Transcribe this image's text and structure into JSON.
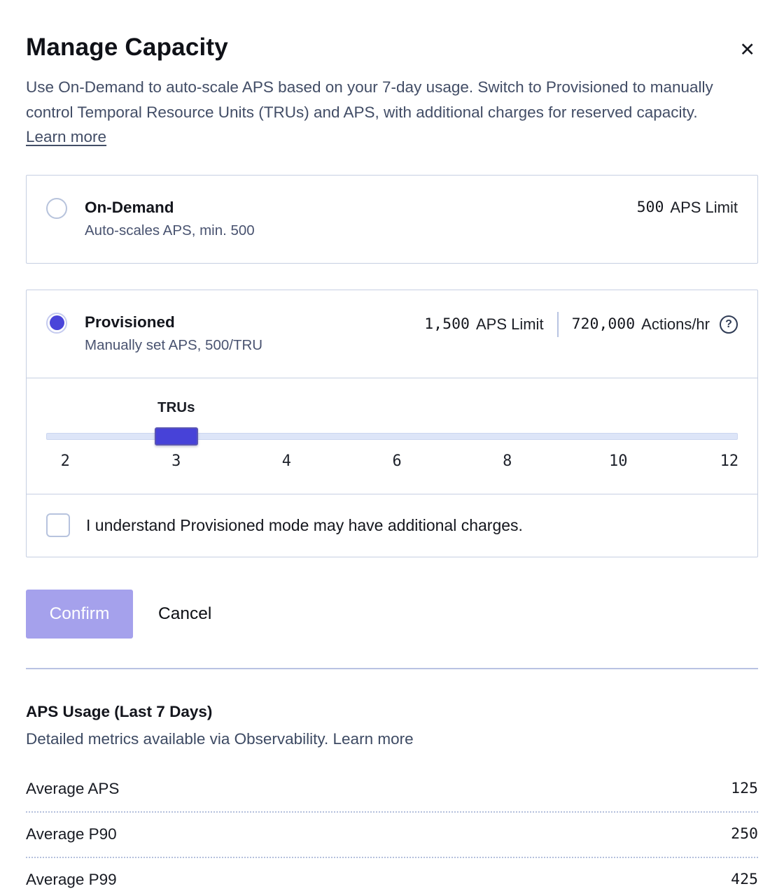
{
  "modal": {
    "title": "Manage Capacity",
    "close_icon": "✕",
    "description": "Use On-Demand to auto-scale APS based on your 7-day usage. Switch to Provisioned to manually control Temporal Resource Units (TRUs) and APS, with additional charges for reserved capacity.",
    "learn_more": "Learn more"
  },
  "options": {
    "on_demand": {
      "label": "On-Demand",
      "sublabel": "Auto-scales APS, min. 500",
      "value": "500",
      "value_suffix": "APS Limit",
      "selected": false
    },
    "provisioned": {
      "label": "Provisioned",
      "sublabel": "Manually set APS, 500/TRU",
      "aps_value": "1,500",
      "aps_suffix": "APS Limit",
      "actions_value": "720,000",
      "actions_suffix": "Actions/hr",
      "help_icon": "?",
      "selected": true
    }
  },
  "slider": {
    "label": "TRUs",
    "value": 3,
    "min": 2,
    "max": 12,
    "ticks": [
      "2",
      "3",
      "4",
      "6",
      "8",
      "10",
      "12"
    ]
  },
  "checkbox": {
    "label": "I understand Provisioned mode may have additional charges.",
    "checked": false
  },
  "actions": {
    "confirm": "Confirm",
    "cancel": "Cancel"
  },
  "usage": {
    "title": "APS Usage (Last 7 Days)",
    "subtitle": "Detailed metrics available via Observability.",
    "learn_more": "Learn more",
    "rows": [
      {
        "label": "Average APS",
        "value": "125"
      },
      {
        "label": "Average P90",
        "value": "250"
      },
      {
        "label": "Average P99",
        "value": "425"
      }
    ]
  },
  "colors": {
    "accent": "#4a45d9",
    "confirm_bg": "#a5a1ec",
    "card_border": "#c6cfe2",
    "slate_text": "#424d66"
  }
}
